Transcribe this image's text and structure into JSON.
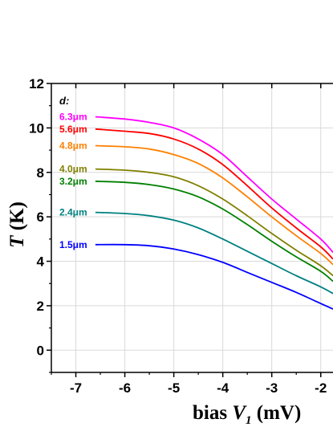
{
  "chart_data": {
    "type": "line",
    "xlabel_main": "bias ",
    "xlabel_var": "V",
    "xlabel_sub": "1",
    "xlabel_unit": " (mV)",
    "ylabel_var": "T",
    "ylabel_unit": " (K)",
    "legend_title": "d:",
    "xlim": [
      -7.5,
      -1.75
    ],
    "ylim": [
      -1,
      12
    ],
    "xticks": [
      "-7",
      "-6",
      "-5",
      "-4",
      "-3",
      "-2"
    ],
    "yticks": [
      "0",
      "2",
      "4",
      "6",
      "8",
      "10",
      "12"
    ],
    "grid": true,
    "series": [
      {
        "name": "6.3μm",
        "color": "#ff00ff",
        "x": [
          -6.6,
          -6.0,
          -5.5,
          -5.0,
          -4.5,
          -4.0,
          -3.5,
          -3.0,
          -2.5,
          -2.0,
          -1.75
        ],
        "y": [
          10.5,
          10.4,
          10.25,
          10.0,
          9.5,
          8.8,
          7.8,
          6.8,
          5.9,
          5.0,
          4.4
        ]
      },
      {
        "name": "5.6μm",
        "color": "#ff0000",
        "x": [
          -6.6,
          -6.0,
          -5.5,
          -5.0,
          -4.5,
          -4.0,
          -3.5,
          -3.0,
          -2.5,
          -2.0,
          -1.75
        ],
        "y": [
          9.95,
          9.85,
          9.75,
          9.5,
          9.05,
          8.35,
          7.4,
          6.4,
          5.5,
          4.65,
          4.1
        ]
      },
      {
        "name": "4.8μm",
        "color": "#ff8000",
        "x": [
          -6.6,
          -6.0,
          -5.5,
          -5.0,
          -4.5,
          -4.0,
          -3.5,
          -3.0,
          -2.5,
          -2.0,
          -1.75
        ],
        "y": [
          9.2,
          9.15,
          9.05,
          8.8,
          8.4,
          7.75,
          6.9,
          6.0,
          5.15,
          4.35,
          3.85
        ]
      },
      {
        "name": "4.0μm",
        "color": "#808000",
        "x": [
          -6.6,
          -6.0,
          -5.5,
          -5.0,
          -4.5,
          -4.0,
          -3.5,
          -3.0,
          -2.5,
          -2.0,
          -1.75
        ],
        "y": [
          8.15,
          8.1,
          8.0,
          7.8,
          7.4,
          6.8,
          6.05,
          5.25,
          4.5,
          3.8,
          3.35
        ]
      },
      {
        "name": "3.2μm",
        "color": "#008000",
        "x": [
          -6.6,
          -6.0,
          -5.5,
          -5.0,
          -4.5,
          -4.0,
          -3.5,
          -3.0,
          -2.5,
          -2.0,
          -1.75
        ],
        "y": [
          7.6,
          7.55,
          7.45,
          7.25,
          6.9,
          6.35,
          5.65,
          4.9,
          4.2,
          3.55,
          3.1
        ]
      },
      {
        "name": "2.4μm",
        "color": "#008080",
        "x": [
          -6.6,
          -6.0,
          -5.5,
          -5.0,
          -4.5,
          -4.0,
          -3.5,
          -3.0,
          -2.5,
          -2.0,
          -1.75
        ],
        "y": [
          6.2,
          6.15,
          6.05,
          5.85,
          5.5,
          5.0,
          4.45,
          3.9,
          3.35,
          2.85,
          2.55
        ]
      },
      {
        "name": "1.5μm",
        "color": "#0000ff",
        "x": [
          -6.6,
          -6.0,
          -5.5,
          -5.0,
          -4.5,
          -4.0,
          -3.5,
          -3.0,
          -2.5,
          -2.0,
          -1.75
        ],
        "y": [
          4.75,
          4.75,
          4.7,
          4.55,
          4.3,
          3.95,
          3.5,
          3.05,
          2.6,
          2.1,
          1.85
        ]
      }
    ]
  }
}
